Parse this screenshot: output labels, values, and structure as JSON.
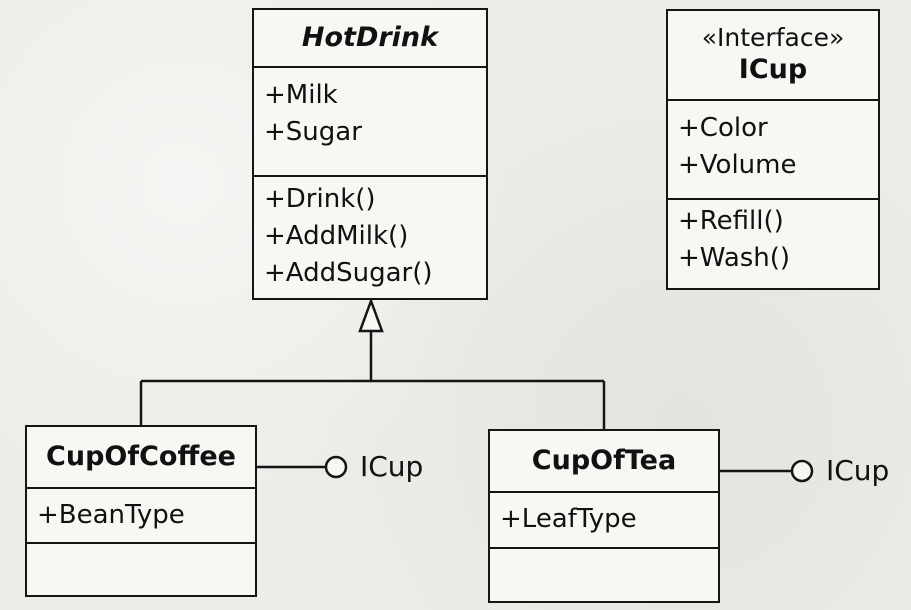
{
  "hotdrink": {
    "name": "HotDrink",
    "attributes": [
      "+Milk",
      "+Sugar"
    ],
    "operations": [
      "+Drink()",
      "+AddMilk()",
      "+AddSugar()"
    ]
  },
  "icup": {
    "stereotype": "«Interface»",
    "name": "ICup",
    "attributes": [
      "+Color",
      "+Volume"
    ],
    "operations": [
      "+Refill()",
      "+Wash()"
    ]
  },
  "cupofcoffee": {
    "name": "CupOfCoffee",
    "attributes": [
      "+BeanType"
    ],
    "interface_label": "ICup"
  },
  "cupoftea": {
    "name": "CupOfTea",
    "attributes": [
      "+LeafType"
    ],
    "interface_label": "ICup"
  }
}
